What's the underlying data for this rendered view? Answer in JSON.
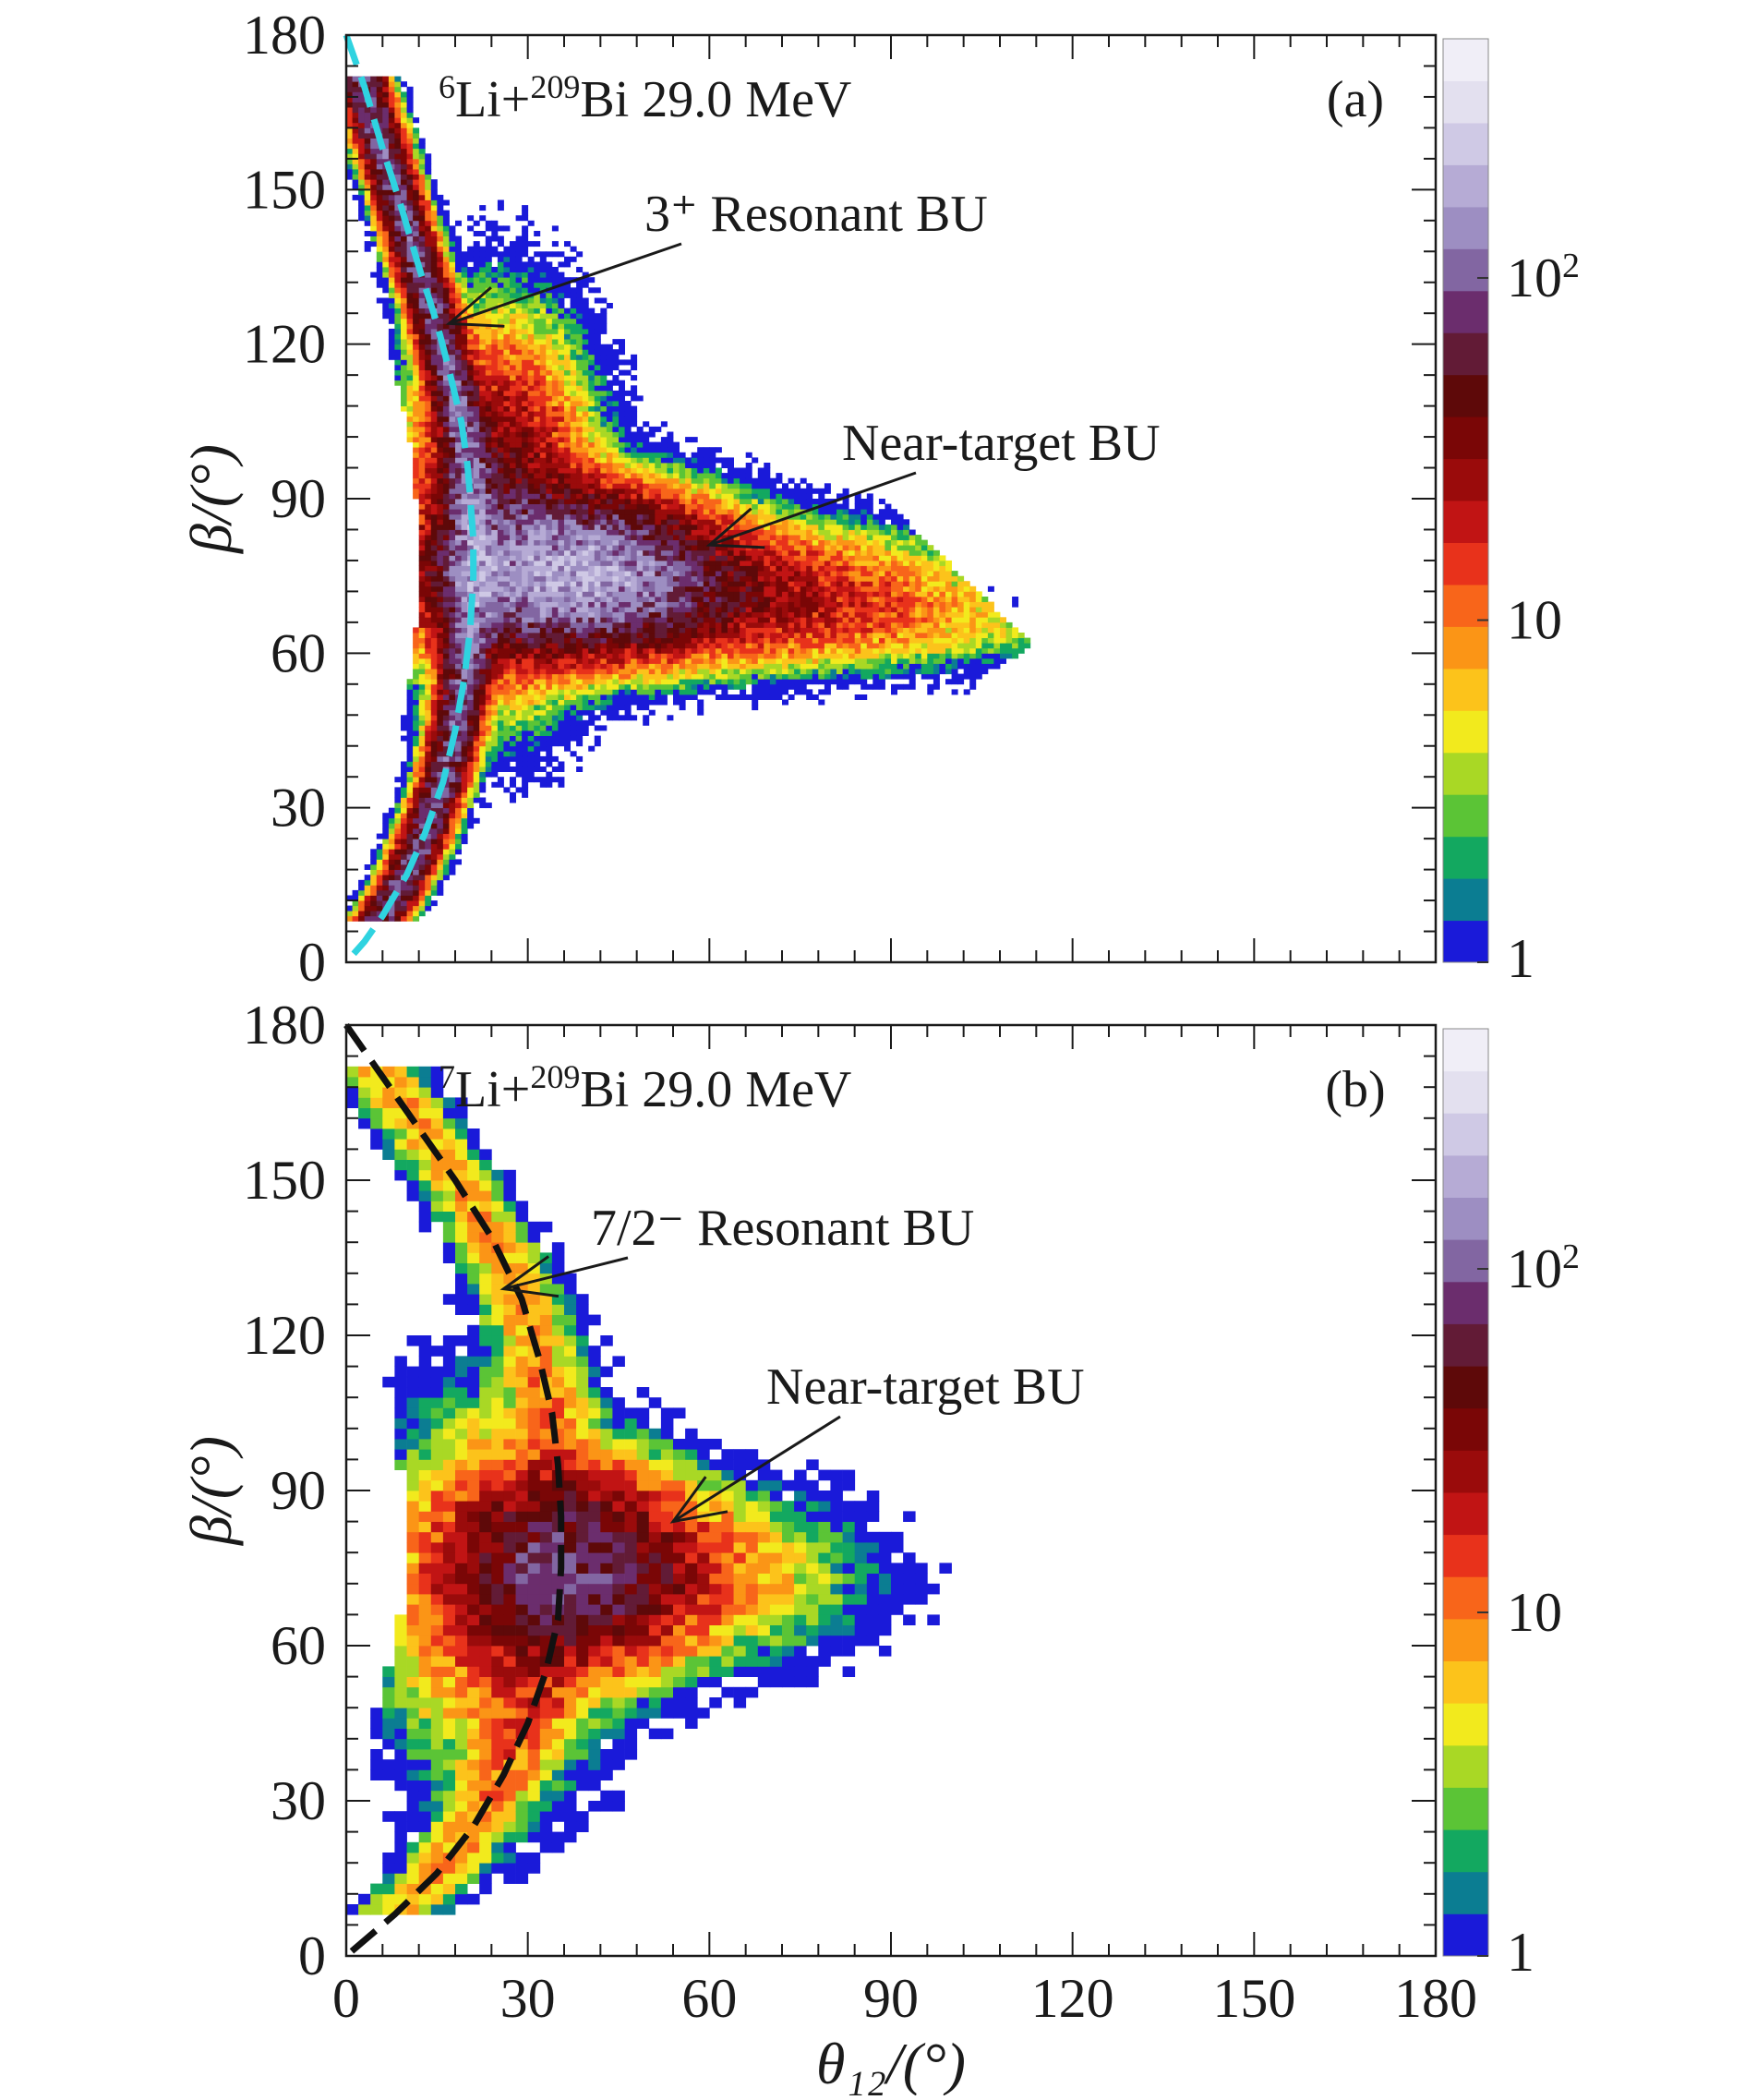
{
  "chart_data": [
    {
      "type": "heatmap",
      "panel_label": "(a)",
      "reaction_text": {
        "mass_projectile": "6",
        "proj": "Li+",
        "mass_target": "209",
        "target": "Bi 29.0 MeV"
      },
      "xlim": [
        0,
        180
      ],
      "ylim": [
        0,
        180
      ],
      "x_ticks": [
        "0",
        "30",
        "60",
        "90",
        "120",
        "150",
        "180"
      ],
      "y_ticks": [
        "0",
        "30",
        "60",
        "90",
        "120",
        "150",
        "180"
      ],
      "ylabel": "β/(°)",
      "xlabel": "",
      "log_color_scale": true,
      "colorbar_range": [
        1,
        500
      ],
      "colorbar_labels": [
        {
          "text": "1",
          "value": 1
        },
        {
          "text": "10",
          "value": 10
        },
        {
          "text": "10²",
          "value": 100
        }
      ],
      "annotations": [
        {
          "text": "3⁺ Resonant BU",
          "arrow_to": [
            17,
            124
          ]
        },
        {
          "text": "Near-target BU",
          "arrow_to": [
            60,
            81
          ]
        }
      ],
      "dashed_curve": {
        "color": "#2fd3e0",
        "description": "resonant breakup kinematic locus",
        "points": [
          [
            0,
            180
          ],
          [
            3,
            170
          ],
          [
            6,
            158
          ],
          [
            9,
            147
          ],
          [
            12,
            135
          ],
          [
            15,
            124
          ],
          [
            17,
            115
          ],
          [
            19,
            105
          ],
          [
            20,
            97
          ],
          [
            20.5,
            90
          ],
          [
            21,
            82
          ],
          [
            21,
            75
          ],
          [
            20.5,
            65
          ],
          [
            19.5,
            55
          ],
          [
            18,
            45
          ],
          [
            16,
            35
          ],
          [
            13,
            25
          ],
          [
            10,
            17
          ],
          [
            6,
            9
          ],
          [
            3,
            4
          ],
          [
            0,
            0
          ]
        ]
      },
      "clusters": [
        {
          "x": 38,
          "y": 76,
          "sx": 12,
          "sy": 8,
          "peak": 160
        },
        {
          "x": 55,
          "y": 72,
          "sx": 22,
          "sy": 7,
          "peak": 35
        },
        {
          "x": 85,
          "y": 66,
          "sx": 22,
          "sy": 5,
          "peak": 6
        },
        {
          "x": 25,
          "y": 88,
          "sx": 8,
          "sy": 18,
          "peak": 45
        }
      ]
    },
    {
      "type": "heatmap",
      "panel_label": "(b)",
      "reaction_text": {
        "mass_projectile": "7",
        "proj": "Li+",
        "mass_target": "209",
        "target": "Bi 29.0 MeV"
      },
      "xlim": [
        0,
        180
      ],
      "ylim": [
        0,
        180
      ],
      "x_ticks": [
        "0",
        "30",
        "60",
        "90",
        "120",
        "150",
        "180"
      ],
      "y_ticks": [
        "0",
        "30",
        "60",
        "90",
        "120",
        "150",
        "180"
      ],
      "ylabel": "β/(°)",
      "xlabel": "θ₁₂/(°)",
      "log_color_scale": true,
      "colorbar_range": [
        1,
        500
      ],
      "colorbar_labels": [
        {
          "text": "1",
          "value": 1
        },
        {
          "text": "10",
          "value": 10
        },
        {
          "text": "10²",
          "value": 100
        }
      ],
      "annotations": [
        {
          "text": "7/2⁻ Resonant BU",
          "arrow_to": [
            26,
            129
          ]
        },
        {
          "text": "Near-target BU",
          "arrow_to": [
            54,
            84
          ]
        }
      ],
      "dashed_curve": {
        "color": "#111111",
        "description": "resonant breakup kinematic locus",
        "points": [
          [
            0,
            180
          ],
          [
            6,
            170
          ],
          [
            12,
            160
          ],
          [
            18,
            150
          ],
          [
            24,
            139
          ],
          [
            29,
            127
          ],
          [
            32,
            115
          ],
          [
            34,
            105
          ],
          [
            35,
            95
          ],
          [
            35.5,
            85
          ],
          [
            35.5,
            75
          ],
          [
            35,
            65
          ],
          [
            33,
            55
          ],
          [
            30,
            45
          ],
          [
            26,
            35
          ],
          [
            21,
            25
          ],
          [
            15,
            16
          ],
          [
            8,
            8
          ],
          [
            0,
            0
          ]
        ]
      },
      "clusters": [
        {
          "x": 38,
          "y": 75,
          "sx": 11,
          "sy": 10,
          "peak": 70
        },
        {
          "x": 55,
          "y": 74,
          "sx": 16,
          "sy": 9,
          "peak": 10
        },
        {
          "x": 25,
          "y": 70,
          "sx": 10,
          "sy": 20,
          "peak": 15
        }
      ]
    }
  ]
}
